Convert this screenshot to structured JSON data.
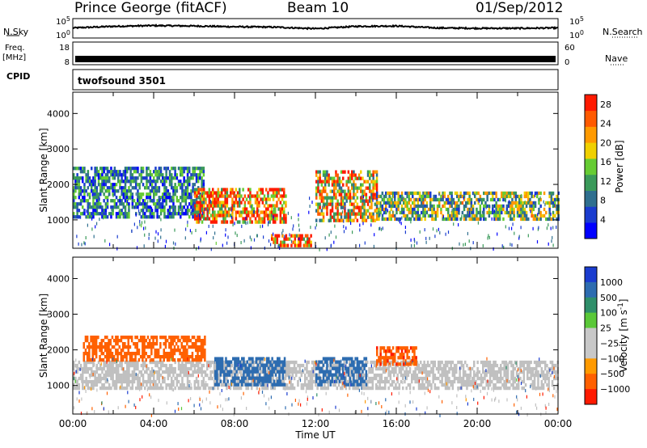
{
  "header": {
    "station": "Prince George (fitACF)",
    "beam": "Beam 10",
    "date": "01/Sep/2012"
  },
  "strips": {
    "nsky_label": "N.Sky",
    "nsearch_label": "N.Search",
    "freq_label_1": "Freq.",
    "freq_label_2": "[MHz]",
    "nave_label": "Nave",
    "cpid_label": "CPID",
    "cpid_value": "twofsound 3501",
    "noise_ticks_left": [
      "10^5",
      "10^0"
    ],
    "noise_ticks_right": [
      "10^5",
      "10^0"
    ],
    "freq_ticks_left": [
      "18",
      "8"
    ],
    "freq_ticks_right": [
      "60",
      "0"
    ]
  },
  "colors": {
    "power_scale": [
      "#0000ff",
      "#1a3ccf",
      "#2f6f8f",
      "#3a9a5a",
      "#66cc33",
      "#f0d000",
      "#ff9a00",
      "#ff5a00",
      "#ff1a00"
    ],
    "velocity_scale": [
      "#1a3ccf",
      "#2d6cb0",
      "#2f8f6a",
      "#5ac838",
      "#c8c8c8",
      "#c8c8c8",
      "#ff9a00",
      "#ff6000",
      "#ff1a00"
    ],
    "ground_scatter": "#c0c0c0"
  },
  "chart_data": [
    {
      "type": "line",
      "panel": "noise",
      "x": [
        0,
        2,
        4,
        6,
        8,
        10,
        12,
        14,
        16,
        18,
        20,
        22,
        24
      ],
      "series": [
        {
          "name": "N.Sky",
          "values": [
            2.6,
            3.0,
            3.2,
            3.1,
            2.9,
            2.8,
            2.4,
            3.0,
            3.1,
            2.6,
            2.5,
            2.5,
            2.6
          ]
        }
      ],
      "ylim": [
        0,
        5
      ],
      "yticks": [
        "10^0",
        "10^5"
      ]
    },
    {
      "type": "line",
      "panel": "frequency",
      "x": [
        0,
        24
      ],
      "series": [
        {
          "name": "Freq.",
          "values": [
            10.5,
            10.5
          ]
        }
      ],
      "ylim": [
        8,
        18
      ],
      "yticks": [
        "8",
        "18"
      ]
    },
    {
      "type": "heatmap",
      "panel": "power",
      "xlabel": "",
      "ylabel": "Slant Range [km]",
      "xlim": [
        0,
        24
      ],
      "ylim": [
        200,
        4600
      ],
      "yticks": [
        "1000",
        "2000",
        "3000",
        "4000"
      ],
      "colorbar_label": "Power [dB]",
      "colorbar_ticks": [
        "4",
        "8",
        "12",
        "16",
        "20",
        "24",
        "28"
      ],
      "colorbar_range": [
        0,
        30
      ],
      "features": [
        {
          "t0": 0.0,
          "t1": 6.5,
          "r0": 1100,
          "r1": 2500,
          "level": 9
        },
        {
          "t0": 6.0,
          "t1": 10.5,
          "r0": 900,
          "r1": 1900,
          "level": 24
        },
        {
          "t0": 9.8,
          "t1": 11.8,
          "r0": 250,
          "r1": 600,
          "level": 26
        },
        {
          "t0": 12.0,
          "t1": 15.0,
          "r0": 950,
          "r1": 2400,
          "level": 20
        },
        {
          "t0": 15.0,
          "t1": 24.0,
          "r0": 1000,
          "r1": 1800,
          "level": 14
        }
      ]
    },
    {
      "type": "heatmap",
      "panel": "velocity",
      "xlabel": "Time UT",
      "ylabel": "Slant Range [km]",
      "xlim": [
        0,
        24
      ],
      "ylim": [
        200,
        4600
      ],
      "xticks": [
        "00:00",
        "04:00",
        "08:00",
        "12:00",
        "16:00",
        "20:00",
        "00:00"
      ],
      "yticks": [
        "1000",
        "2000",
        "3000",
        "4000"
      ],
      "colorbar_label": "Velocity [m s^-1]",
      "colorbar_ticks": [
        "1000",
        "500",
        "100",
        "25",
        "−25",
        "−100",
        "−500",
        "−1000"
      ],
      "features": [
        {
          "t0": 0.0,
          "t1": 24.0,
          "r0": 900,
          "r1": 1700,
          "level": "ground scatter"
        },
        {
          "t0": 0.5,
          "t1": 6.5,
          "r0": 1700,
          "r1": 2400,
          "level": -300
        },
        {
          "t0": 7.0,
          "t1": 10.5,
          "r0": 1000,
          "r1": 1800,
          "level": 300
        },
        {
          "t0": 12.0,
          "t1": 14.5,
          "r0": 1000,
          "r1": 1800,
          "level": 200
        },
        {
          "t0": 15.0,
          "t1": 17.0,
          "r0": 1600,
          "r1": 2100,
          "level": -400
        }
      ]
    }
  ]
}
